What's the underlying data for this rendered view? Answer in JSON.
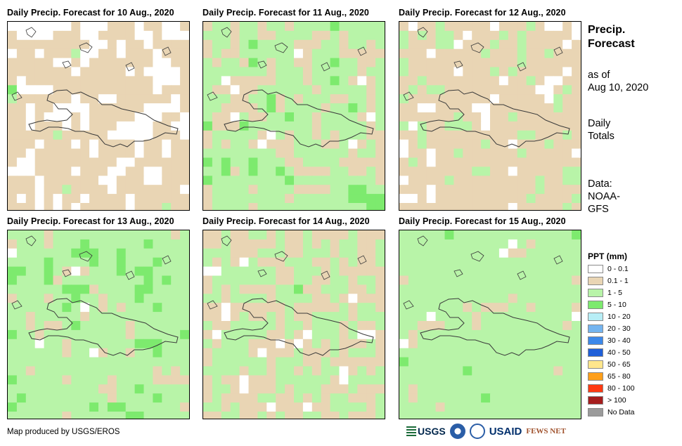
{
  "panels": [
    {
      "title": "Daily Precip. Forecast for 10 Aug., 2020",
      "pattern": 0
    },
    {
      "title": "Daily Precip. Forecast for 11 Aug., 2020",
      "pattern": 1
    },
    {
      "title": "Daily Precip. Forecast for 12 Aug., 2020",
      "pattern": 2
    },
    {
      "title": "Daily Precip. Forecast for 13 Aug., 2020",
      "pattern": 3
    },
    {
      "title": "Daily Precip. Forecast for 14 Aug., 2020",
      "pattern": 4
    },
    {
      "title": "Daily Precip. Forecast for 15 Aug., 2020",
      "pattern": 5
    }
  ],
  "side": {
    "title_line1": "Precip.",
    "title_line2": "Forecast",
    "asof_line1": "as of",
    "asof_line2": "Aug 10, 2020",
    "daily_line1": "Daily",
    "daily_line2": "Totals",
    "data_line1": "Data:",
    "data_line2": "NOAA-",
    "data_line3": "GFS"
  },
  "legend": {
    "title": "PPT (mm)",
    "items": [
      {
        "label": "0 - 0.1",
        "color": "#ffffff"
      },
      {
        "label": "0.1 - 1",
        "color": "#e9d5b4"
      },
      {
        "label": "1 - 5",
        "color": "#b8f4a8"
      },
      {
        "label": "5 - 10",
        "color": "#7dea6e"
      },
      {
        "label": "10 - 20",
        "color": "#b7eef6"
      },
      {
        "label": "20 - 30",
        "color": "#74b4ef"
      },
      {
        "label": "30 - 40",
        "color": "#3c88ea"
      },
      {
        "label": "40 - 50",
        "color": "#1f5fd8"
      },
      {
        "label": "50 - 65",
        "color": "#ffe68c"
      },
      {
        "label": "65 - 80",
        "color": "#ff9f1a"
      },
      {
        "label": "80 - 100",
        "color": "#ff3a12"
      },
      {
        "label": "> 100",
        "color": "#a51d1d"
      },
      {
        "label": "No Data",
        "color": "#9b9b9b"
      }
    ]
  },
  "credit": "Map produced by USGS/EROS",
  "logos": {
    "usgs": "USGS",
    "usaid": "USAID",
    "fews": "FEWS NET"
  }
}
